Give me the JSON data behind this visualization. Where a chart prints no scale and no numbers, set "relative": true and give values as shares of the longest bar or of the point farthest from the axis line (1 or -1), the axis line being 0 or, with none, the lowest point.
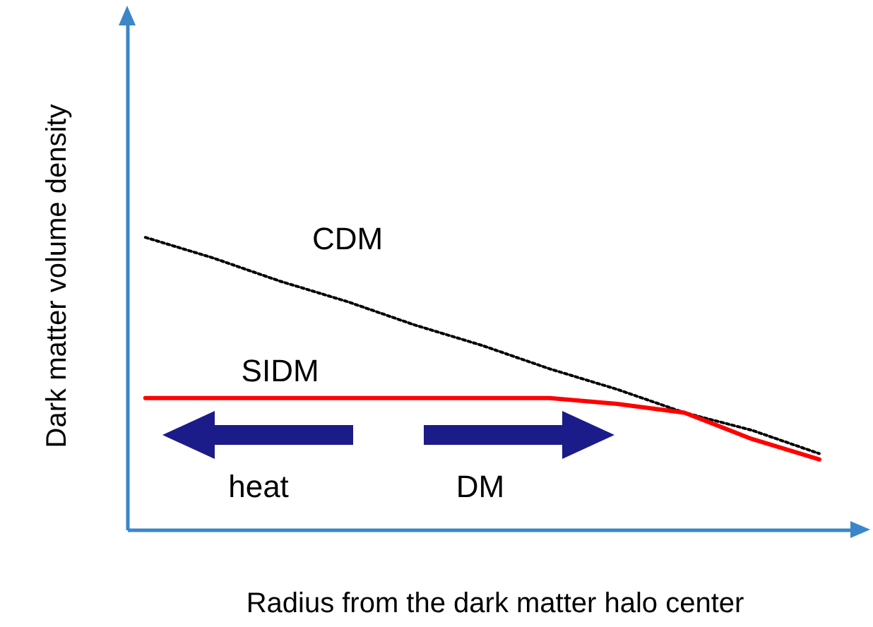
{
  "chart_data": {
    "type": "line",
    "relative": true,
    "xlabel": "Radius from the dark matter halo center",
    "ylabel": "Dark matter volume density",
    "categories": [
      null,
      null,
      null,
      null,
      null,
      null,
      null,
      null,
      null,
      null,
      null
    ],
    "series": [
      {
        "name": "CDM",
        "color": "#000000",
        "line_style": "dotted",
        "values": [
          1,
          0.93,
          0.85,
          0.78,
          0.7,
          0.63,
          0.55,
          0.48,
          0.4,
          0.34,
          0.26
        ]
      },
      {
        "name": "SIDM",
        "color": "#ff0000",
        "line_style": "solid",
        "values": [
          0.45,
          0.45,
          0.45,
          0.45,
          0.45,
          0.45,
          0.45,
          0.43,
          0.4,
          0.31,
          0.24
        ]
      }
    ],
    "annotations": [
      "heat",
      "DM"
    ],
    "grid": false
  }
}
